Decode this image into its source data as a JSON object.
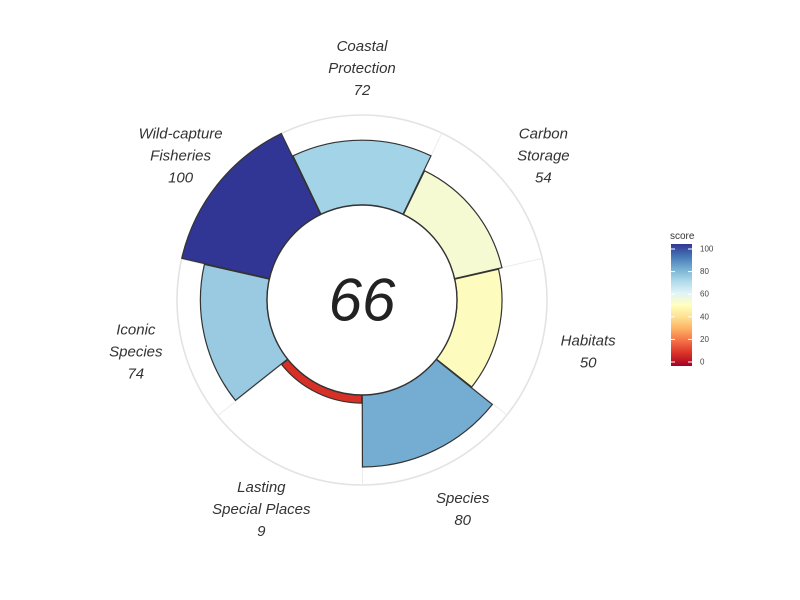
{
  "chart_data": {
    "type": "polar-bar",
    "center_value": "66",
    "max_score": 100,
    "categories": [
      {
        "lines": [
          "Coastal",
          "Protection",
          "72"
        ],
        "score": 72,
        "color": "#a3d3e6"
      },
      {
        "lines": [
          "Carbon",
          "Storage",
          "54"
        ],
        "score": 54,
        "color": "#f6fad3"
      },
      {
        "lines": [
          "Habitats",
          "50"
        ],
        "score": 50,
        "color": "#fefbbe"
      },
      {
        "lines": [
          "Species",
          "80"
        ],
        "score": 80,
        "color": "#75acd2"
      },
      {
        "lines": [
          "Lasting",
          "Special Places",
          "9"
        ],
        "score": 9,
        "color": "#d73027"
      },
      {
        "lines": [
          "Iconic",
          "Species",
          "74"
        ],
        "score": 74,
        "color": "#99cae1"
      },
      {
        "lines": [
          "Wild-capture",
          "Fisheries",
          "100"
        ],
        "score": 100,
        "color": "#313695"
      }
    ],
    "legend": {
      "title": "score",
      "ticks": [
        "100",
        "80",
        "60",
        "40",
        "20",
        "0"
      ],
      "colorscale": [
        "#313695",
        "#4575b4",
        "#74add1",
        "#abd9e9",
        "#e0f3f8",
        "#ffffbf",
        "#fee090",
        "#fdae61",
        "#f46d43",
        "#d73027",
        "#a50026"
      ]
    }
  }
}
